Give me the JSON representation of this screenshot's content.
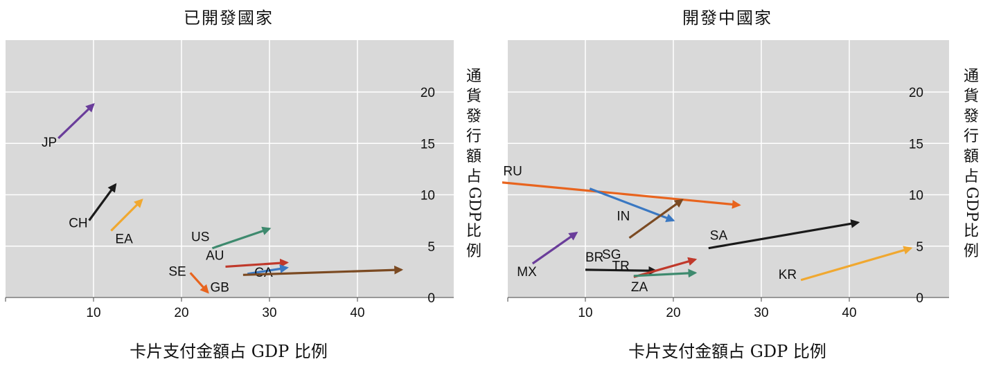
{
  "chart_data": [
    {
      "type": "arrow",
      "title": "已開發國家",
      "xlabel": "卡片支付金額占 GDP 比例",
      "ylabel": "通貨發行額占 GDP 比例",
      "xlim": [
        0,
        50
      ],
      "ylim": [
        0,
        24
      ],
      "xticks": [
        "10",
        "20",
        "30",
        "40"
      ],
      "yticks": [
        "0",
        "5",
        "10",
        "15",
        "20"
      ],
      "grid": true,
      "series": [
        {
          "name": "JP",
          "color": "#6a3d9a",
          "x0": 6,
          "y0": 15.5,
          "x1": 10,
          "y1": 18.8
        },
        {
          "name": "CH",
          "color": "#1a1a1a",
          "x0": 9.5,
          "y0": 7.5,
          "x1": 12.5,
          "y1": 11
        },
        {
          "name": "EA",
          "color": "#f0a830",
          "x0": 12,
          "y0": 6.5,
          "x1": 15.5,
          "y1": 9.5
        },
        {
          "name": "US",
          "color": "#3e8a6e",
          "x0": 23.5,
          "y0": 4.8,
          "x1": 30,
          "y1": 6.7
        },
        {
          "name": "AU",
          "color": "#c0392b",
          "x0": 25,
          "y0": 3,
          "x1": 32,
          "y1": 3.4
        },
        {
          "name": "CA",
          "color": "#3a78c2",
          "x0": 27.5,
          "y0": 2.3,
          "x1": 32,
          "y1": 2.9
        },
        {
          "name": "GB",
          "color": "#7b4a22",
          "x0": 27,
          "y0": 2.2,
          "x1": 45,
          "y1": 2.7
        },
        {
          "name": "SE",
          "color": "#e8641e",
          "x0": 21,
          "y0": 2.4,
          "x1": 23,
          "y1": 0.5
        }
      ]
    },
    {
      "type": "arrow",
      "title": "開發中國家",
      "xlabel": "卡片支付金額占 GDP 比例",
      "ylabel": "通貨發行額占 GDP 比例",
      "xlim": [
        0,
        50
      ],
      "ylim": [
        0,
        24
      ],
      "xticks": [
        "10",
        "20",
        "30",
        "40"
      ],
      "yticks": [
        "0",
        "5",
        "10",
        "15",
        "20"
      ],
      "grid": true,
      "series": [
        {
          "name": "RU",
          "color": "#e8641e",
          "x0": 0.5,
          "y0": 11.2,
          "x1": 27.5,
          "y1": 9
        },
        {
          "name": "IN",
          "color": "#3a78c2",
          "x0": 10.5,
          "y0": 10.6,
          "x1": 20,
          "y1": 7.5
        },
        {
          "name": "SG",
          "color": "#7b4a22",
          "x0": 15,
          "y0": 5.8,
          "x1": 21,
          "y1": 9.5
        },
        {
          "name": "MX",
          "color": "#6a3d9a",
          "x0": 4,
          "y0": 3.3,
          "x1": 9,
          "y1": 6.3
        },
        {
          "name": "SA",
          "color": "#1a1a1a",
          "x0": 24,
          "y0": 4.8,
          "x1": 41,
          "y1": 7.3
        },
        {
          "name": "KR",
          "color": "#f0a830",
          "x0": 34.5,
          "y0": 1.7,
          "x1": 47,
          "y1": 4.8
        },
        {
          "name": "BR",
          "color": "#1a1a1a",
          "x0": 10,
          "y0": 2.7,
          "x1": 18,
          "y1": 2.6
        },
        {
          "name": "TR",
          "color": "#c0392b",
          "x0": 15.5,
          "y0": 2,
          "x1": 22.5,
          "y1": 3.7
        },
        {
          "name": "ZA",
          "color": "#3e8a6e",
          "x0": 15.5,
          "y0": 2.1,
          "x1": 22.5,
          "y1": 2.4
        }
      ]
    }
  ]
}
